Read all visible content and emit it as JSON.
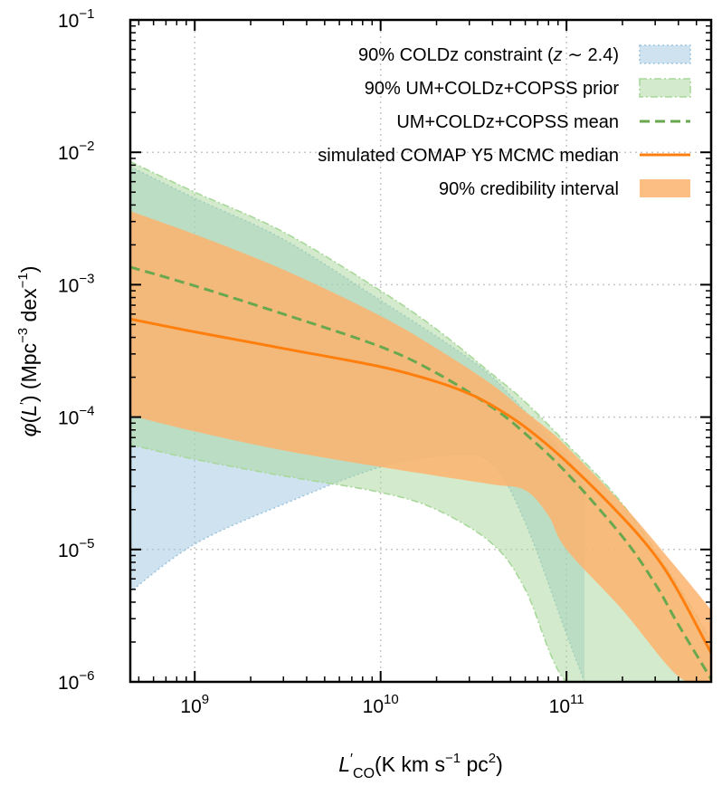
{
  "chart_data": {
    "type": "area",
    "xscale": "log",
    "yscale": "log",
    "xlim": [
      450000000.0,
      600000000000.0
    ],
    "ylim": [
      1e-06,
      0.1
    ],
    "xlabel_main": "L",
    "xlabel_prime": "′",
    "xlabel_sub": "CO",
    "xlabel_units": "(K km s",
    "xlabel_exp1": "−1",
    "xlabel_pc": "pc",
    "xlabel_exp2": "2",
    "xlabel_close": ")",
    "ylabel_phi": "φ",
    "ylabel_open": "(",
    "ylabel_L": "L",
    "ylabel_prime": "′",
    "ylabel_mid": ") (Mpc",
    "ylabel_exp1": "−3",
    "ylabel_dex": "dex",
    "ylabel_exp2": "−1",
    "ylabel_close": ")",
    "grid": true,
    "legend_position": "top-right",
    "x_ticks": [
      {
        "value": 1000000000.0,
        "base": "10",
        "exp": "9"
      },
      {
        "value": 10000000000.0,
        "base": "10",
        "exp": "10"
      },
      {
        "value": 100000000000.0,
        "base": "10",
        "exp": "11"
      }
    ],
    "y_ticks": [
      {
        "value": 0.1,
        "base": "10",
        "exp": "−1"
      },
      {
        "value": 0.01,
        "base": "10",
        "exp": "−2"
      },
      {
        "value": 0.001,
        "base": "10",
        "exp": "−3"
      },
      {
        "value": 0.0001,
        "base": "10",
        "exp": "−4"
      },
      {
        "value": 1e-05,
        "base": "10",
        "exp": "−5"
      },
      {
        "value": 1e-06,
        "base": "10",
        "exp": "−6"
      }
    ],
    "legend": [
      {
        "key": "coldz",
        "label_pre": "90% COLDz constraint (",
        "label_var": "z",
        "label_post": " ∼ 2.4)"
      },
      {
        "key": "prior",
        "label_pre": "90% UM+COLDz+COPSS prior",
        "label_var": "",
        "label_post": ""
      },
      {
        "key": "mean",
        "label_pre": "UM+COLDz+COPSS mean",
        "label_var": "",
        "label_post": ""
      },
      {
        "key": "median",
        "label_pre": "simulated COMAP Y5 MCMC median",
        "label_var": "",
        "label_post": ""
      },
      {
        "key": "ci",
        "label_pre": "90% credibility interval",
        "label_var": "",
        "label_post": ""
      }
    ],
    "series": [
      {
        "name": "90% COLDz constraint (z ∼ 2.4)",
        "key": "coldz",
        "kind": "band",
        "color": "#9ec6e0",
        "x": [
          450000000.0,
          1000000000.0,
          3000000000.0,
          10000000000.0,
          25000000000.0,
          40000000000.0,
          60000000000.0,
          100000000000.0,
          125000000000.0
        ],
        "lower": [
          4.8e-06,
          1.1e-05,
          2.2e-05,
          4.2e-05,
          5.2e-05,
          4.4e-05,
          1.6e-05,
          2.3e-06,
          1e-06
        ],
        "upper": [
          0.0078,
          0.0045,
          0.0022,
          0.00076,
          0.00033,
          0.0002,
          0.00011,
          5e-05,
          3e-05
        ]
      },
      {
        "name": "90% UM+COLDz+COPSS prior",
        "key": "prior",
        "kind": "band",
        "color": "#a8d89a",
        "x": [
          450000000.0,
          1000000000.0,
          3000000000.0,
          10000000000.0,
          20000000000.0,
          40000000000.0,
          60000000000.0,
          100000000000.0,
          200000000000.0,
          400000000000.0,
          600000000000.0
        ],
        "lower": [
          6.2e-05,
          4.8e-05,
          3.6e-05,
          2.7e-05,
          2e-05,
          1.1e-05,
          5e-06,
          1e-06,
          1e-06,
          1e-06,
          1e-06
        ],
        "upper": [
          0.0085,
          0.005,
          0.0025,
          0.0009,
          0.00046,
          0.00021,
          0.00013,
          6.3e-05,
          2.2e-05,
          5.3e-06,
          2e-06
        ]
      },
      {
        "name": "90% credibility interval",
        "key": "ci",
        "kind": "band",
        "color": "#fdb36d",
        "x": [
          450000000.0,
          1000000000.0,
          3000000000.0,
          10000000000.0,
          20000000000.0,
          40000000000.0,
          60000000000.0,
          80000000000.0,
          100000000000.0,
          200000000000.0,
          400000000000.0,
          600000000000.0
        ],
        "lower": [
          0.000103,
          7.8e-05,
          5.6e-05,
          4.2e-05,
          3.6e-05,
          3.1e-05,
          2.8e-05,
          1.8e-05,
          1e-05,
          3.5e-06,
          1.1e-06,
          1e-06
        ],
        "upper": [
          0.0036,
          0.0024,
          0.0013,
          0.00058,
          0.00033,
          0.000175,
          0.00011,
          8e-05,
          6e-05,
          2.2e-05,
          7e-06,
          3.5e-06
        ]
      },
      {
        "name": "UM+COLDz+COPSS mean",
        "key": "mean",
        "kind": "line",
        "dashed": true,
        "color": "#6aa84f",
        "x": [
          450000000.0,
          1000000000.0,
          3000000000.0,
          10000000000.0,
          20000000000.0,
          40000000000.0,
          60000000000.0,
          100000000000.0,
          200000000000.0,
          300000000000.0,
          400000000000.0,
          600000000000.0
        ],
        "y": [
          0.00136,
          0.00098,
          0.0006,
          0.00034,
          0.000215,
          0.000118,
          7.5e-05,
          3.8e-05,
          1.25e-05,
          5.5e-06,
          2.7e-06,
          1.05e-06
        ]
      },
      {
        "name": "simulated COMAP Y5 MCMC median",
        "key": "median",
        "kind": "line",
        "dashed": false,
        "color": "#ff7f0e",
        "x": [
          450000000.0,
          1000000000.0,
          3000000000.0,
          10000000000.0,
          20000000000.0,
          30000000000.0,
          40000000000.0,
          60000000000.0,
          100000000000.0,
          200000000000.0,
          300000000000.0,
          400000000000.0,
          600000000000.0
        ],
        "y": [
          0.00055,
          0.00044,
          0.00033,
          0.00024,
          0.000185,
          0.00015,
          0.000122,
          8.4e-05,
          4.6e-05,
          1.75e-05,
          9e-06,
          4.8e-06,
          1.65e-06
        ]
      }
    ]
  }
}
